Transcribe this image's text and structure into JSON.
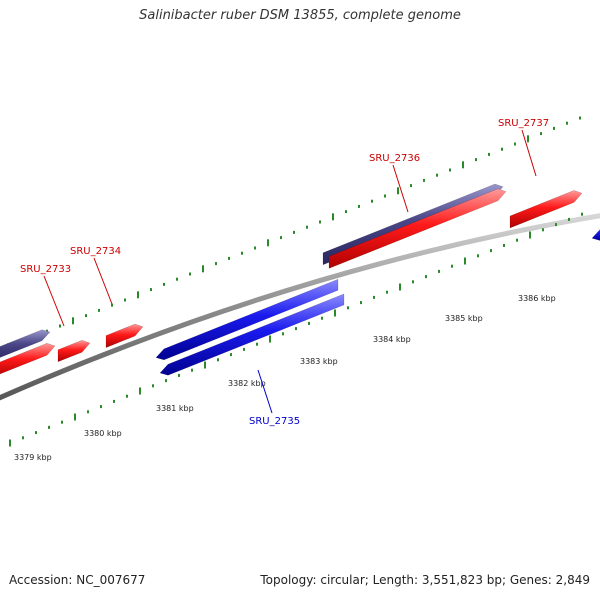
{
  "title": "Salinibacter ruber DSM 13855, complete genome",
  "footer": {
    "accession": "Accession: NC_007677",
    "summary": "Topology: circular; Length: 3,551,823 bp; Genes: 2,849"
  },
  "colors": {
    "forward_gene": "#ff1a1a",
    "reverse_gene": "#1a1aee",
    "cds_feature": "#4a4688",
    "backbone": "#8c8c8c",
    "tick": "#2a8a2a",
    "forward_label": "#cc0000",
    "reverse_label": "#0000cc",
    "scale_label": "#222222"
  },
  "scale_labels": [
    {
      "text": "3379 kbp",
      "kbp": 3379
    },
    {
      "text": "3380 kbp",
      "kbp": 3380
    },
    {
      "text": "3381 kbp",
      "kbp": 3381
    },
    {
      "text": "3382 kbp",
      "kbp": 3382
    },
    {
      "text": "3383 kbp",
      "kbp": 3383
    },
    {
      "text": "3384 kbp",
      "kbp": 3384
    },
    {
      "text": "3385 kbp",
      "kbp": 3385
    },
    {
      "text": "3386 kbp",
      "kbp": 3386
    }
  ],
  "gene_labels": [
    {
      "text": "SRU_2733",
      "strand": "forward"
    },
    {
      "text": "SRU_2734",
      "strand": "forward"
    },
    {
      "text": "SRU_2735",
      "strand": "reverse"
    },
    {
      "text": "SRU_2736",
      "strand": "forward"
    },
    {
      "text": "SRU_2737",
      "strand": "forward"
    }
  ]
}
